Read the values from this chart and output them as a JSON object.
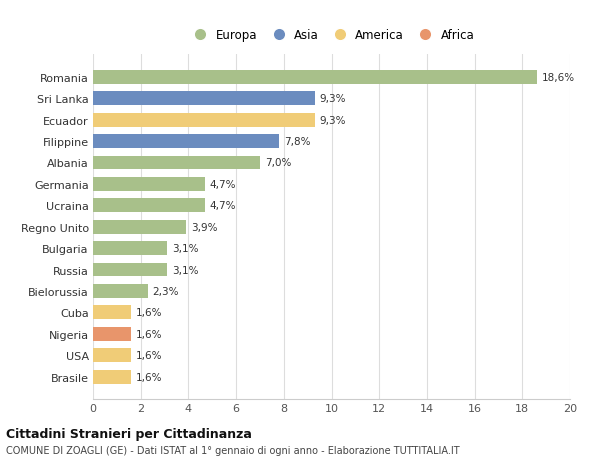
{
  "categories": [
    "Romania",
    "Sri Lanka",
    "Ecuador",
    "Filippine",
    "Albania",
    "Germania",
    "Ucraina",
    "Regno Unito",
    "Bulgaria",
    "Russia",
    "Bielorussia",
    "Cuba",
    "Nigeria",
    "USA",
    "Brasile"
  ],
  "values": [
    18.6,
    9.3,
    9.3,
    7.8,
    7.0,
    4.7,
    4.7,
    3.9,
    3.1,
    3.1,
    2.3,
    1.6,
    1.6,
    1.6,
    1.6
  ],
  "labels": [
    "18,6%",
    "9,3%",
    "9,3%",
    "7,8%",
    "7,0%",
    "4,7%",
    "4,7%",
    "3,9%",
    "3,1%",
    "3,1%",
    "2,3%",
    "1,6%",
    "1,6%",
    "1,6%",
    "1,6%"
  ],
  "continents": [
    "Europa",
    "Asia",
    "America",
    "Asia",
    "Europa",
    "Europa",
    "Europa",
    "Europa",
    "Europa",
    "Europa",
    "Europa",
    "America",
    "Africa",
    "America",
    "America"
  ],
  "colors": {
    "Europa": "#a8c08a",
    "Asia": "#6b8cbf",
    "America": "#f0cc77",
    "Africa": "#e8956b"
  },
  "legend_order": [
    "Europa",
    "Asia",
    "America",
    "Africa"
  ],
  "title": "Cittadini Stranieri per Cittadinanza",
  "subtitle": "COMUNE DI ZOAGLI (GE) - Dati ISTAT al 1° gennaio di ogni anno - Elaborazione TUTTITALIA.IT",
  "xlim": [
    0,
    20
  ],
  "xticks": [
    0,
    2,
    4,
    6,
    8,
    10,
    12,
    14,
    16,
    18,
    20
  ],
  "background_color": "#ffffff",
  "grid_color": "#dddddd",
  "bar_height": 0.65
}
